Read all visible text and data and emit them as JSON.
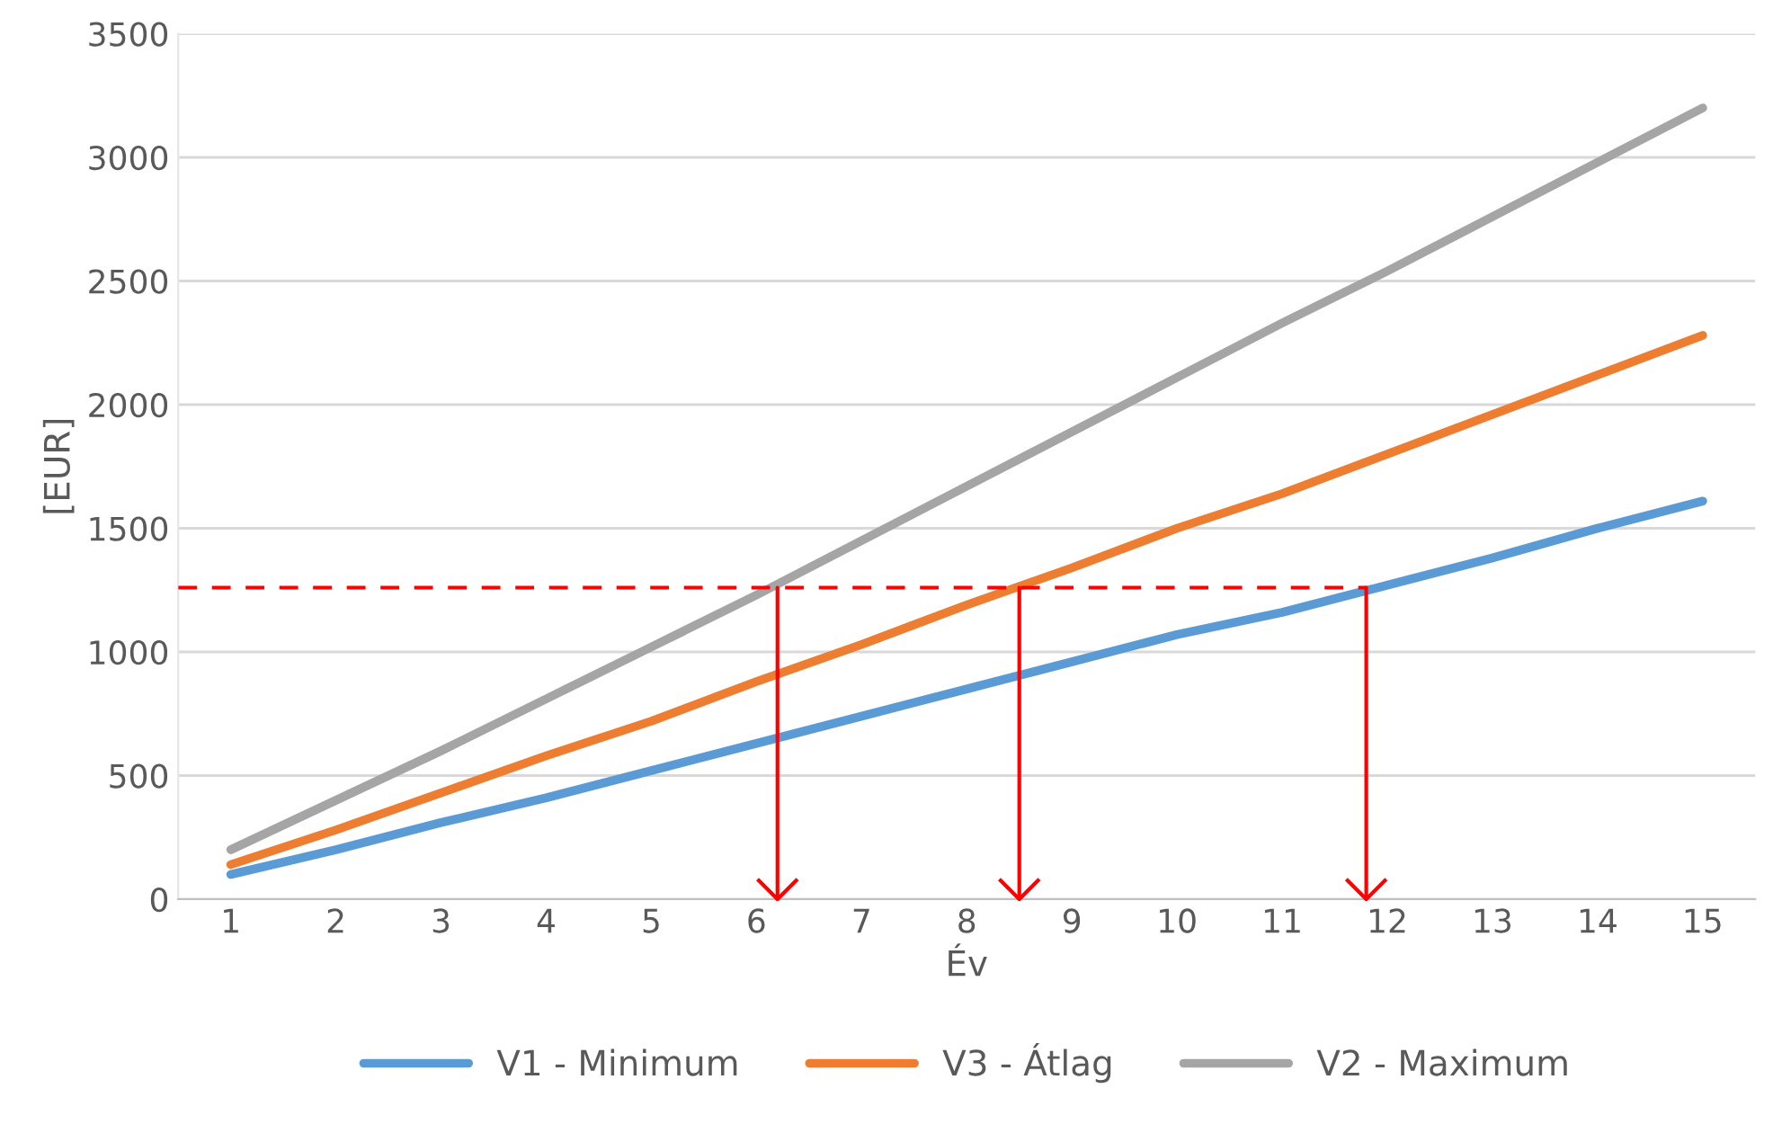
{
  "chart_data": {
    "type": "line",
    "xlabel": "Év",
    "ylabel": "[EUR]",
    "x": [
      1,
      2,
      3,
      4,
      5,
      6,
      7,
      8,
      9,
      10,
      11,
      12,
      13,
      14,
      15
    ],
    "xlim": [
      0.5,
      15.5
    ],
    "xticks": [
      1,
      2,
      3,
      4,
      5,
      6,
      7,
      8,
      9,
      10,
      11,
      12,
      13,
      14,
      15
    ],
    "ylim": [
      0,
      3500
    ],
    "yticks": [
      0,
      500,
      1000,
      1500,
      2000,
      2500,
      3000,
      3500
    ],
    "grid": "y",
    "legend": "bottom",
    "marker": "none",
    "line_style": "solid",
    "series": [
      {
        "name": "V1 - Minimum",
        "color": "#5b9bd5",
        "values": [
          100,
          200,
          310,
          410,
          520,
          630,
          740,
          850,
          960,
          1070,
          1160,
          1270,
          1380,
          1500,
          1610
        ]
      },
      {
        "name": "V3 - Átlag",
        "color": "#ed7d31",
        "values": [
          140,
          280,
          430,
          580,
          720,
          880,
          1030,
          1190,
          1340,
          1500,
          1640,
          1800,
          1960,
          2120,
          2280
        ]
      },
      {
        "name": "V2 - Maximum",
        "color": "#a5a5a5",
        "values": [
          200,
          400,
          600,
          810,
          1020,
          1230,
          1450,
          1670,
          1890,
          2110,
          2330,
          2540,
          2760,
          2980,
          3200
        ]
      }
    ],
    "ref_lines": [
      {
        "axis": "y",
        "value": 1260,
        "color": "#ff0000",
        "line_style": "dashed"
      },
      {
        "axis": "x",
        "value": 6.2,
        "color": "#ff0000",
        "line_style": "solid"
      },
      {
        "axis": "x",
        "value": 8.5,
        "color": "#ff0000",
        "line_style": "solid"
      },
      {
        "axis": "x",
        "value": 11.8,
        "color": "#ff0000",
        "line_style": "solid"
      }
    ]
  }
}
